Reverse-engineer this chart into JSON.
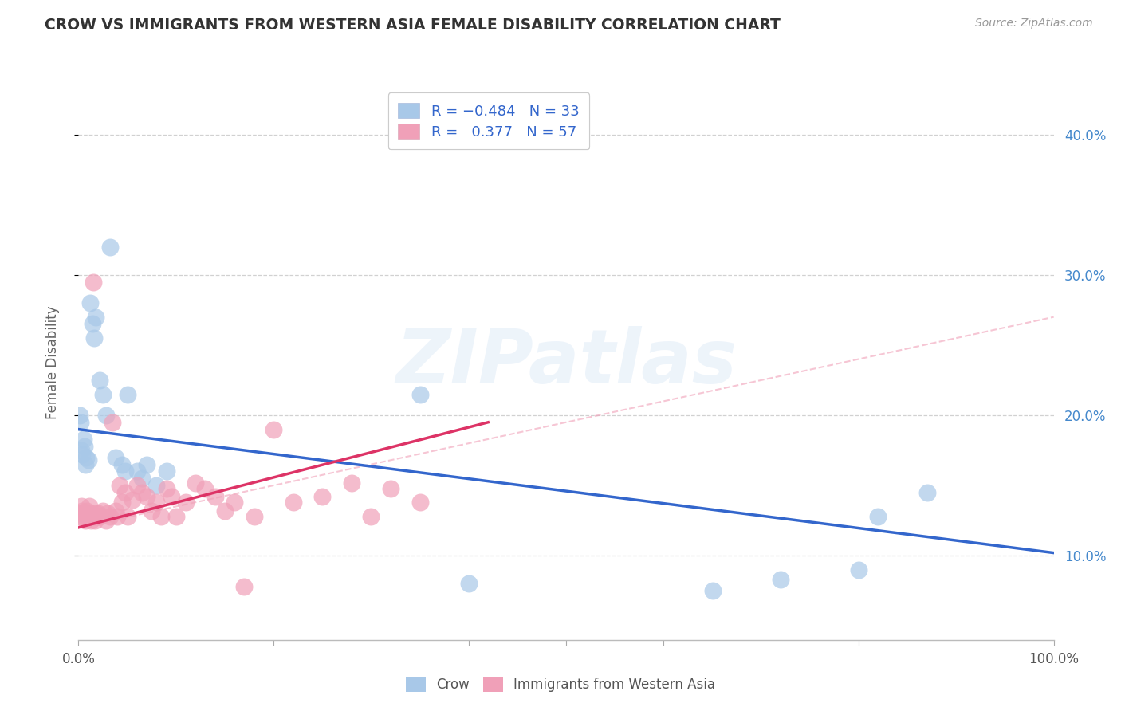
{
  "title": "CROW VS IMMIGRANTS FROM WESTERN ASIA FEMALE DISABILITY CORRELATION CHART",
  "source": "Source: ZipAtlas.com",
  "ylabel": "Female Disability",
  "xlim": [
    0.0,
    1.0
  ],
  "ylim": [
    0.04,
    0.435
  ],
  "yticks": [
    0.1,
    0.2,
    0.3,
    0.4
  ],
  "right_ytick_labels": [
    "10.0%",
    "20.0%",
    "30.0%",
    "40.0%"
  ],
  "xticks": [
    0.0,
    0.2,
    0.4,
    0.5,
    0.6,
    0.8,
    1.0
  ],
  "xtick_labels": [
    "0.0%",
    "",
    "",
    "",
    "",
    "",
    "100.0%"
  ],
  "crow_color": "#a8c8e8",
  "crow_edge_color": "#a8c8e8",
  "crow_line_color": "#3366cc",
  "imm_color": "#f0a0b8",
  "imm_edge_color": "#f0a0b8",
  "imm_line_color": "#dd3366",
  "imm_dash_color": "#f0a0b8",
  "watermark": "ZIPatlas",
  "background_color": "#ffffff",
  "grid_color": "#cccccc",
  "crow_points": [
    [
      0.001,
      0.2
    ],
    [
      0.002,
      0.195
    ],
    [
      0.003,
      0.175
    ],
    [
      0.004,
      0.172
    ],
    [
      0.005,
      0.183
    ],
    [
      0.006,
      0.178
    ],
    [
      0.007,
      0.165
    ],
    [
      0.008,
      0.17
    ],
    [
      0.01,
      0.168
    ],
    [
      0.012,
      0.28
    ],
    [
      0.014,
      0.265
    ],
    [
      0.016,
      0.255
    ],
    [
      0.018,
      0.27
    ],
    [
      0.022,
      0.225
    ],
    [
      0.025,
      0.215
    ],
    [
      0.028,
      0.2
    ],
    [
      0.032,
      0.32
    ],
    [
      0.038,
      0.17
    ],
    [
      0.045,
      0.165
    ],
    [
      0.048,
      0.16
    ],
    [
      0.05,
      0.215
    ],
    [
      0.06,
      0.16
    ],
    [
      0.065,
      0.155
    ],
    [
      0.07,
      0.165
    ],
    [
      0.08,
      0.15
    ],
    [
      0.09,
      0.16
    ],
    [
      0.35,
      0.215
    ],
    [
      0.4,
      0.08
    ],
    [
      0.65,
      0.075
    ],
    [
      0.72,
      0.083
    ],
    [
      0.8,
      0.09
    ],
    [
      0.82,
      0.128
    ],
    [
      0.87,
      0.145
    ]
  ],
  "imm_points": [
    [
      0.001,
      0.13
    ],
    [
      0.002,
      0.128
    ],
    [
      0.003,
      0.135
    ],
    [
      0.004,
      0.132
    ],
    [
      0.005,
      0.13
    ],
    [
      0.006,
      0.128
    ],
    [
      0.007,
      0.125
    ],
    [
      0.008,
      0.13
    ],
    [
      0.009,
      0.132
    ],
    [
      0.01,
      0.128
    ],
    [
      0.011,
      0.135
    ],
    [
      0.012,
      0.13
    ],
    [
      0.013,
      0.125
    ],
    [
      0.014,
      0.128
    ],
    [
      0.015,
      0.295
    ],
    [
      0.016,
      0.128
    ],
    [
      0.017,
      0.125
    ],
    [
      0.018,
      0.13
    ],
    [
      0.019,
      0.128
    ],
    [
      0.02,
      0.13
    ],
    [
      0.022,
      0.128
    ],
    [
      0.025,
      0.132
    ],
    [
      0.028,
      0.125
    ],
    [
      0.03,
      0.13
    ],
    [
      0.032,
      0.128
    ],
    [
      0.035,
      0.195
    ],
    [
      0.038,
      0.132
    ],
    [
      0.04,
      0.128
    ],
    [
      0.042,
      0.15
    ],
    [
      0.045,
      0.138
    ],
    [
      0.048,
      0.145
    ],
    [
      0.05,
      0.128
    ],
    [
      0.055,
      0.14
    ],
    [
      0.06,
      0.15
    ],
    [
      0.065,
      0.145
    ],
    [
      0.07,
      0.142
    ],
    [
      0.075,
      0.132
    ],
    [
      0.08,
      0.138
    ],
    [
      0.085,
      0.128
    ],
    [
      0.09,
      0.148
    ],
    [
      0.095,
      0.142
    ],
    [
      0.1,
      0.128
    ],
    [
      0.11,
      0.138
    ],
    [
      0.12,
      0.152
    ],
    [
      0.13,
      0.148
    ],
    [
      0.14,
      0.142
    ],
    [
      0.15,
      0.132
    ],
    [
      0.16,
      0.138
    ],
    [
      0.17,
      0.078
    ],
    [
      0.18,
      0.128
    ],
    [
      0.2,
      0.19
    ],
    [
      0.22,
      0.138
    ],
    [
      0.25,
      0.142
    ],
    [
      0.28,
      0.152
    ],
    [
      0.3,
      0.128
    ],
    [
      0.32,
      0.148
    ],
    [
      0.35,
      0.138
    ]
  ],
  "crow_reg": [
    0.0,
    1.0,
    0.19,
    0.102
  ],
  "imm_reg": [
    0.0,
    0.42,
    0.12,
    0.195
  ],
  "imm_dash": [
    0.0,
    1.0,
    0.12,
    0.27
  ]
}
